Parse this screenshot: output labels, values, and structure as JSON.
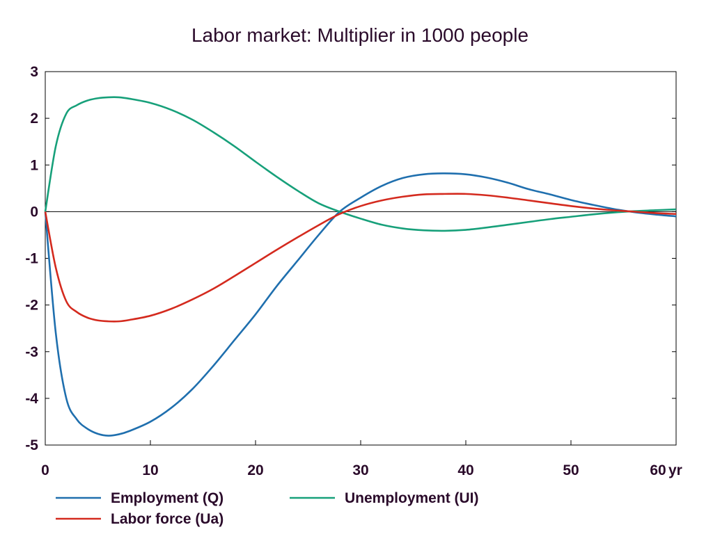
{
  "chart_data": {
    "type": "line",
    "title": "Labor market: Multiplier in 1000 people",
    "xlabel": "",
    "ylabel": "",
    "x_unit": "yr",
    "xlim": [
      0,
      60
    ],
    "ylim": [
      -5,
      3
    ],
    "x_ticks": [
      0,
      10,
      20,
      30,
      40,
      50,
      60
    ],
    "y_ticks": [
      3,
      2,
      1,
      0,
      -1,
      -2,
      -3,
      -4,
      -5
    ],
    "grid": false,
    "zero_line": true,
    "legend_placement": "bottom",
    "series": [
      {
        "name": "Employment (Q)",
        "color": "#1f6fae",
        "points": [
          [
            0,
            0
          ],
          [
            1,
            -2.6
          ],
          [
            2,
            -4.0
          ],
          [
            3,
            -4.45
          ],
          [
            4,
            -4.65
          ],
          [
            5,
            -4.76
          ],
          [
            6,
            -4.8
          ],
          [
            7,
            -4.77
          ],
          [
            8,
            -4.7
          ],
          [
            10,
            -4.5
          ],
          [
            12,
            -4.2
          ],
          [
            14,
            -3.8
          ],
          [
            16,
            -3.3
          ],
          [
            18,
            -2.75
          ],
          [
            20,
            -2.2
          ],
          [
            22,
            -1.6
          ],
          [
            24,
            -1.05
          ],
          [
            26,
            -0.5
          ],
          [
            28,
            0.0
          ],
          [
            30,
            0.3
          ],
          [
            32,
            0.55
          ],
          [
            34,
            0.72
          ],
          [
            36,
            0.8
          ],
          [
            38,
            0.82
          ],
          [
            40,
            0.8
          ],
          [
            42,
            0.73
          ],
          [
            44,
            0.62
          ],
          [
            46,
            0.48
          ],
          [
            48,
            0.37
          ],
          [
            50,
            0.25
          ],
          [
            52,
            0.15
          ],
          [
            54,
            0.06
          ],
          [
            56,
            -0.01
          ],
          [
            58,
            -0.06
          ],
          [
            60,
            -0.1
          ]
        ]
      },
      {
        "name": "Unemployment (UI)",
        "color": "#17a07a",
        "points": [
          [
            0,
            0
          ],
          [
            1,
            1.4
          ],
          [
            2,
            2.1
          ],
          [
            3,
            2.28
          ],
          [
            4,
            2.38
          ],
          [
            5,
            2.43
          ],
          [
            6,
            2.45
          ],
          [
            7,
            2.45
          ],
          [
            8,
            2.42
          ],
          [
            10,
            2.33
          ],
          [
            12,
            2.18
          ],
          [
            14,
            1.97
          ],
          [
            16,
            1.7
          ],
          [
            18,
            1.4
          ],
          [
            20,
            1.07
          ],
          [
            22,
            0.75
          ],
          [
            24,
            0.45
          ],
          [
            26,
            0.18
          ],
          [
            28,
            0.0
          ],
          [
            30,
            -0.15
          ],
          [
            32,
            -0.28
          ],
          [
            34,
            -0.36
          ],
          [
            36,
            -0.4
          ],
          [
            38,
            -0.41
          ],
          [
            40,
            -0.39
          ],
          [
            42,
            -0.34
          ],
          [
            44,
            -0.28
          ],
          [
            46,
            -0.22
          ],
          [
            48,
            -0.16
          ],
          [
            50,
            -0.11
          ],
          [
            52,
            -0.06
          ],
          [
            54,
            -0.02
          ],
          [
            56,
            0.01
          ],
          [
            58,
            0.03
          ],
          [
            60,
            0.05
          ]
        ]
      },
      {
        "name": "Labor force (Ua)",
        "color": "#d42a1e",
        "points": [
          [
            0,
            0
          ],
          [
            1,
            -1.2
          ],
          [
            2,
            -1.92
          ],
          [
            3,
            -2.15
          ],
          [
            4,
            -2.27
          ],
          [
            5,
            -2.33
          ],
          [
            6,
            -2.35
          ],
          [
            7,
            -2.35
          ],
          [
            8,
            -2.32
          ],
          [
            10,
            -2.23
          ],
          [
            12,
            -2.08
          ],
          [
            14,
            -1.88
          ],
          [
            16,
            -1.65
          ],
          [
            18,
            -1.38
          ],
          [
            20,
            -1.1
          ],
          [
            22,
            -0.82
          ],
          [
            24,
            -0.55
          ],
          [
            26,
            -0.29
          ],
          [
            28,
            -0.05
          ],
          [
            30,
            0.12
          ],
          [
            32,
            0.24
          ],
          [
            34,
            0.32
          ],
          [
            36,
            0.37
          ],
          [
            38,
            0.38
          ],
          [
            40,
            0.38
          ],
          [
            42,
            0.35
          ],
          [
            44,
            0.3
          ],
          [
            46,
            0.24
          ],
          [
            48,
            0.18
          ],
          [
            50,
            0.12
          ],
          [
            52,
            0.07
          ],
          [
            54,
            0.03
          ],
          [
            56,
            0.0
          ],
          [
            58,
            -0.03
          ],
          [
            60,
            -0.05
          ]
        ]
      }
    ]
  }
}
